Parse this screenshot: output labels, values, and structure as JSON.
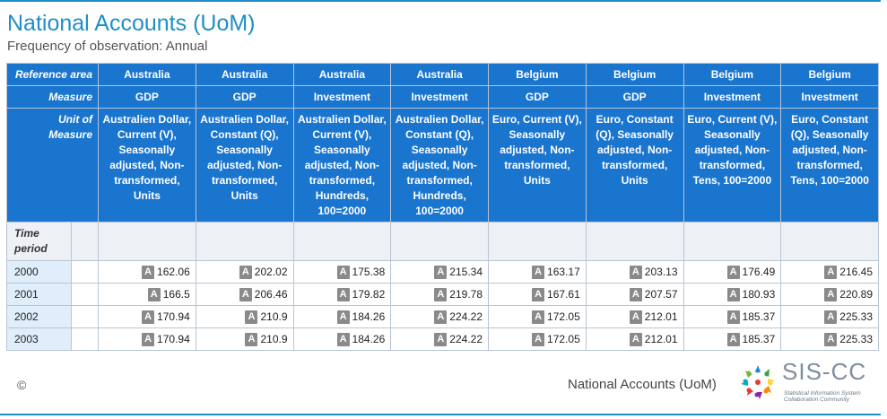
{
  "header": {
    "title": "National Accounts (UoM)",
    "subtitle": "Frequency of observation: Annual"
  },
  "table": {
    "dimension_labels": {
      "reference_area": "Reference area",
      "measure": "Measure",
      "unit_of_measure": "Unit of Measure",
      "time_period": "Time period"
    },
    "columns": [
      {
        "area": "Australia",
        "measure": "GDP",
        "unit": "Australien Dollar, Current (V), Seasonally adjusted, Non-transformed, Units"
      },
      {
        "area": "Australia",
        "measure": "GDP",
        "unit": "Australien Dollar, Constant (Q), Seasonally adjusted, Non-transformed, Units"
      },
      {
        "area": "Australia",
        "measure": "Investment",
        "unit": "Australien Dollar, Current (V), Seasonally adjusted, Non-transformed, Hundreds, 100=2000"
      },
      {
        "area": "Australia",
        "measure": "Investment",
        "unit": "Australien Dollar, Constant (Q), Seasonally adjusted, Non-transformed, Hundreds, 100=2000"
      },
      {
        "area": "Belgium",
        "measure": "GDP",
        "unit": "Euro, Current (V), Seasonally adjusted, Non-transformed, Units"
      },
      {
        "area": "Belgium",
        "measure": "GDP",
        "unit": "Euro, Constant (Q), Seasonally adjusted, Non-transformed, Units"
      },
      {
        "area": "Belgium",
        "measure": "Investment",
        "unit": "Euro, Current (V), Seasonally adjusted, Non-transformed, Tens, 100=2000"
      },
      {
        "area": "Belgium",
        "measure": "Investment",
        "unit": "Euro, Constant (Q), Seasonally adjusted, Non-transformed, Tens, 100=2000"
      }
    ],
    "rows": [
      {
        "period": "2000",
        "values": [
          "162.06",
          "202.02",
          "175.38",
          "215.34",
          "163.17",
          "203.13",
          "176.49",
          "216.45"
        ]
      },
      {
        "period": "2001",
        "values": [
          "166.5",
          "206.46",
          "179.82",
          "219.78",
          "167.61",
          "207.57",
          "180.93",
          "220.89"
        ]
      },
      {
        "period": "2002",
        "values": [
          "170.94",
          "210.9",
          "184.26",
          "224.22",
          "172.05",
          "212.01",
          "185.37",
          "225.33"
        ]
      },
      {
        "period": "2003",
        "values": [
          "170.94",
          "210.9",
          "184.26",
          "224.22",
          "172.05",
          "212.01",
          "185.37",
          "225.33"
        ]
      }
    ],
    "flag": "A"
  },
  "footer": {
    "copyright": "©",
    "title": "National Accounts (UoM)",
    "logo": {
      "name": "SIS-CC",
      "tagline_line1": "Statistical Information System",
      "tagline_line2": "Collaboration Community",
      "icon": "people-circle-logo-icon"
    }
  },
  "colors": {
    "accent": "#1e8fc6",
    "header_bg": "#1a75cf",
    "period_bg": "#dfeefa",
    "flag_badge": "#8a8a8a"
  }
}
